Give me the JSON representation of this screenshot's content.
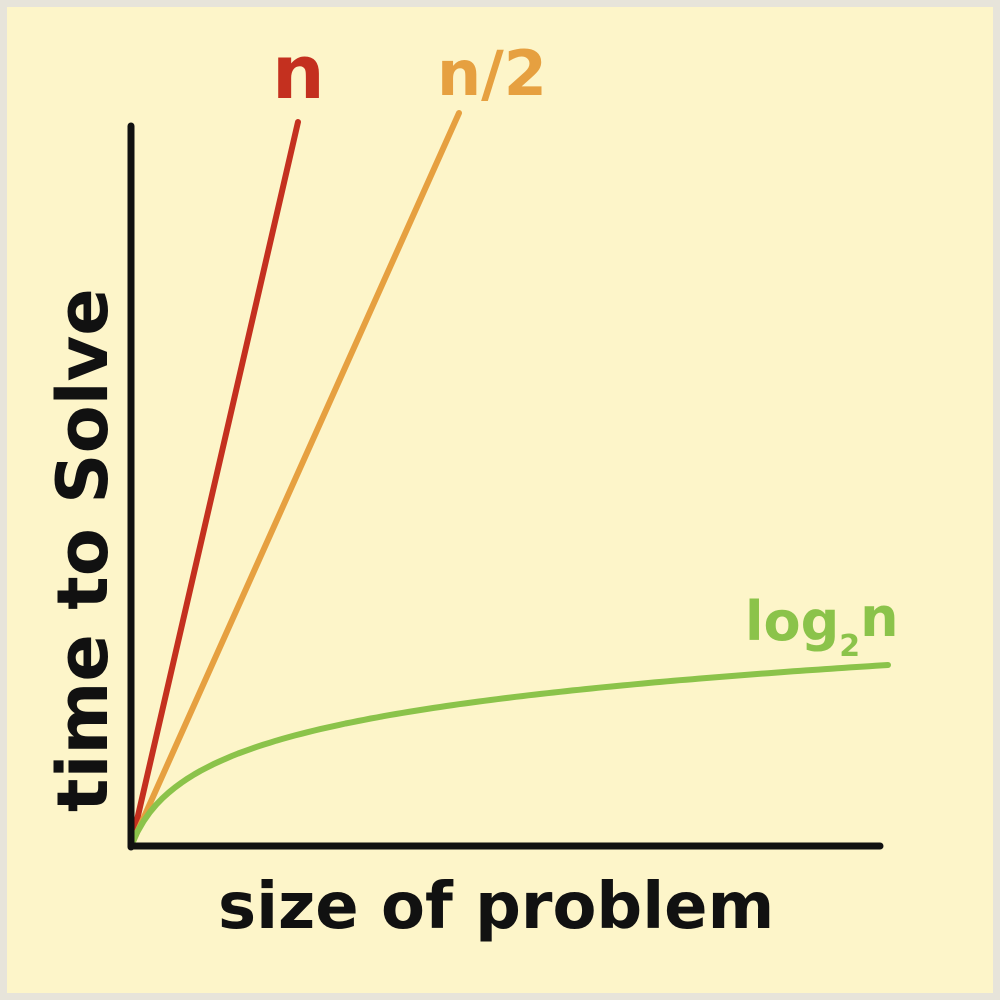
{
  "chart_data": {
    "type": "line",
    "title": "",
    "xlabel": "size of problem",
    "ylabel": "time to Solve",
    "grid": false,
    "legend": "direct labels at line ends",
    "series": [
      {
        "name": "n",
        "color": "#c4301f",
        "function": "n"
      },
      {
        "name": "n/2",
        "color": "#e6a040",
        "function": "n/2"
      },
      {
        "name": "log2n",
        "name_base": "log",
        "name_subscript": "2",
        "name_arg": "n",
        "color": "#8bc34a",
        "function": "log2(n)"
      }
    ]
  },
  "colors": {
    "background": "#fdf5c9",
    "border": "#e7e4da",
    "axis": "#111111"
  }
}
